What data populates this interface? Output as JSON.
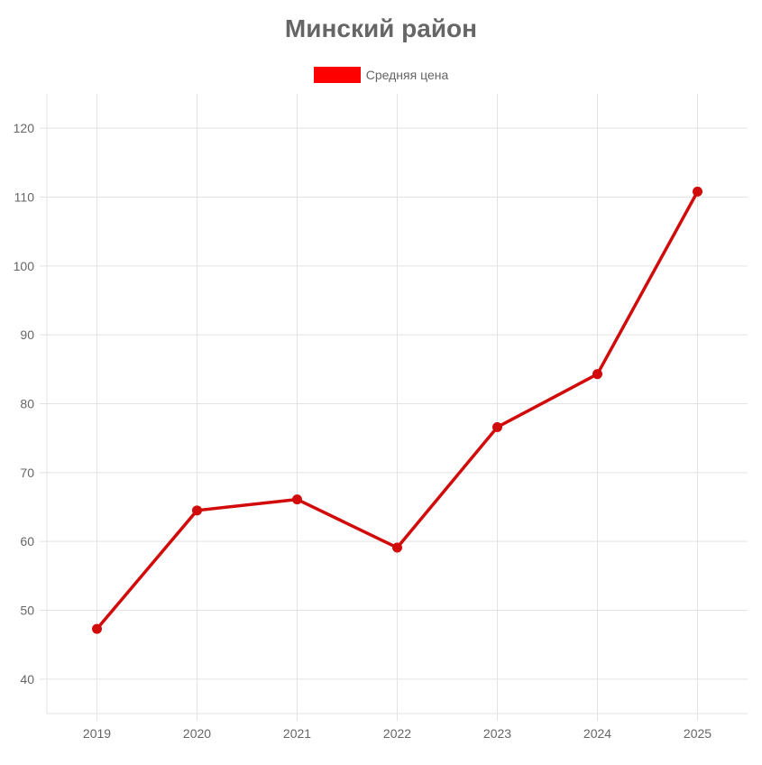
{
  "colors": {
    "series": "#d10a0a",
    "legend_swatch": "#ff0000",
    "grid": "#e3e3e3",
    "text": "#666666"
  },
  "chart_data": {
    "type": "line",
    "title": "Минский район",
    "categories": [
      "2019",
      "2020",
      "2021",
      "2022",
      "2023",
      "2024",
      "2025"
    ],
    "series": [
      {
        "name": "Средняя цена",
        "values": [
          47.3,
          64.5,
          66.1,
          59.1,
          76.6,
          84.3,
          110.8
        ]
      }
    ],
    "xlabel": "",
    "ylabel": "",
    "ylim": [
      35,
      125
    ],
    "yticks": [
      40,
      50,
      60,
      70,
      80,
      90,
      100,
      110,
      120
    ],
    "grid": true,
    "legend_position": "top-center"
  }
}
